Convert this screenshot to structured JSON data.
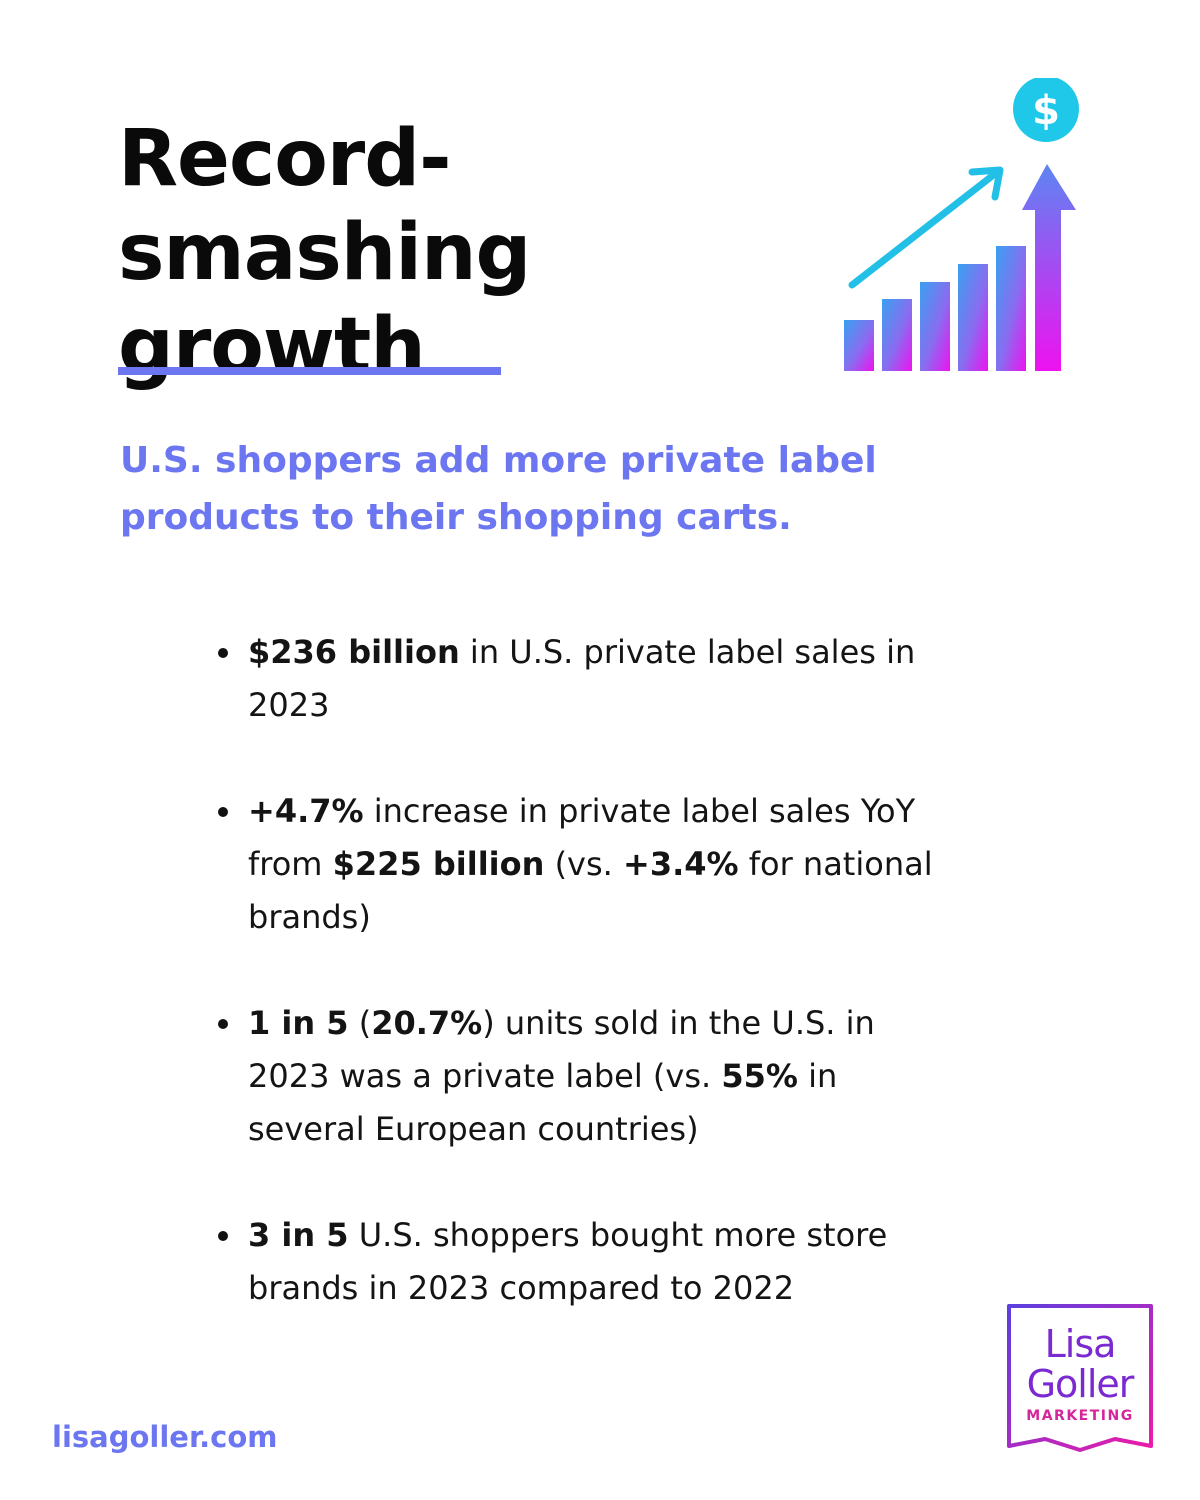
{
  "header": {
    "title_line1": "Record-smashing",
    "title_line2": "growth",
    "subtitle_line1": "U.S. shoppers add more private label",
    "subtitle_line2": "products to their shopping carts."
  },
  "icon": {
    "name": "growth-chart-icon",
    "coin_symbol": "$",
    "colors": {
      "cyan": "#1fc8e8",
      "blue": "#4a8cf0",
      "purple": "#8a5cf0",
      "magenta": "#e81cf0"
    }
  },
  "facts": [
    {
      "line1_bold": "$236 billion",
      "line1_rest": " in U.S. private label sales in",
      "line2": "2023"
    },
    {
      "bold_a": "+4.7%",
      "text_a": " increase in private label sales YoY",
      "text_b": "from ",
      "bold_b": "$225 billion",
      "text_c": " (vs. ",
      "bold_c": "+3.4%",
      "text_d": " for national",
      "text_e": "brands)"
    },
    {
      "bold_a": "1 in 5",
      "text_a": " (",
      "bold_b": "20.7%",
      "text_b": ") units sold in the U.S. in",
      "text_c": "2023 was a private label (vs. ",
      "bold_c": "55%",
      "text_d": " in",
      "text_e": "several European countries)"
    },
    {
      "bold_a": "3 in 5",
      "text_a": " U.S. shoppers bought more store",
      "text_b": "brands in 2023 compared to 2022"
    }
  ],
  "footer": {
    "website": "lisagoller.com",
    "logo_line1": "Lisa",
    "logo_line2": "Goller",
    "logo_line3": "MARKETING"
  },
  "colors": {
    "accent": "#6b76f0",
    "text": "#111111",
    "logo_purple": "#7a2ad0",
    "logo_magenta": "#d6259a"
  }
}
